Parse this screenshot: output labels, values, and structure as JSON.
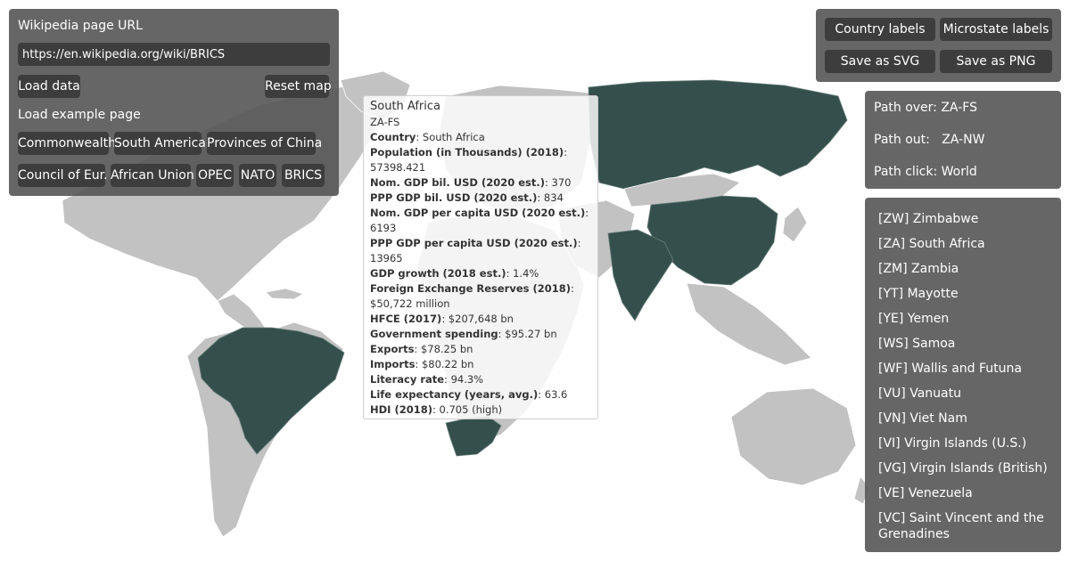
{
  "url_panel": {
    "title": "Wikipedia page URL",
    "url_value": "https://en.wikipedia.org/wiki/BRICS",
    "load_data": "Load data",
    "reset_map": "Reset map",
    "example_title": "Load example page",
    "examples": [
      "Commonwealth",
      "South America",
      "Provinces of China",
      "Council of Eur.",
      "African Union",
      "OPEC",
      "NATO",
      "BRICS"
    ]
  },
  "top_buttons": {
    "country_labels": "Country labels",
    "microstate_labels": "Microstate labels",
    "save_svg": "Save as SVG",
    "save_png": "Save as PNG"
  },
  "path_panel": {
    "over": "Path over: ZA-FS",
    "out": "Path out:   ZA-NW",
    "click": "Path click: World"
  },
  "country_list": [
    "[ZW] Zimbabwe",
    "[ZA] South Africa",
    "[ZM] Zambia",
    "[YT] Mayotte",
    "[YE] Yemen",
    "[WS] Samoa",
    "[WF] Wallis and Futuna",
    "[VU] Vanuatu",
    "[VN] Viet Nam",
    "[VI] Virgin Islands (U.S.)",
    "[VG] Virgin Islands (British)",
    "[VE] Venezuela",
    "[VC] Saint Vincent and the",
    "Grenadines"
  ],
  "tooltip": {
    "country": "South Africa",
    "code": "ZA-FS",
    "rows": [
      {
        "label": "Country",
        "value": ": South Africa"
      },
      {
        "label": "Population (in Thousands) (2018)",
        "value": ":"
      },
      {
        "label": "",
        "value": "57398.421"
      },
      {
        "label": "Nom. GDP bil. USD (2020 est.)",
        "value": ": 370"
      },
      {
        "label": "PPP GDP bil. USD (2020 est.)",
        "value": ": 834"
      },
      {
        "label": "Nom. GDP per capita USD (2020 est.)",
        "value": ":"
      },
      {
        "label": "",
        "value": "6193"
      },
      {
        "label": "PPP GDP per capita USD (2020 est.)",
        "value": ":"
      },
      {
        "label": "",
        "value": "13965"
      },
      {
        "label": "GDP growth (2018 est.)",
        "value": ": 1.4%"
      },
      {
        "label": "Foreign Exchange Reserves (2018)",
        "value": ":"
      },
      {
        "label": "",
        "value": "$50,722 million"
      },
      {
        "label": "HFCE (2017)",
        "value": ": $207,648 bn"
      },
      {
        "label": "Government spending",
        "value": ": $95.27 bn"
      },
      {
        "label": "Exports",
        "value": ": $78.25 bn"
      },
      {
        "label": "Imports",
        "value": ": $80.22 bn"
      },
      {
        "label": "Literacy rate",
        "value": ": 94.3%"
      },
      {
        "label": "Life expectancy (years, avg.)",
        "value": ": 63.6"
      },
      {
        "label": "HDI (2018)",
        "value": ": 0.705 (high)"
      }
    ]
  },
  "colors": {
    "highlight": "#35504c",
    "land": "#c2c2c2",
    "panel": "#555555",
    "button": "#3d3d3d"
  }
}
